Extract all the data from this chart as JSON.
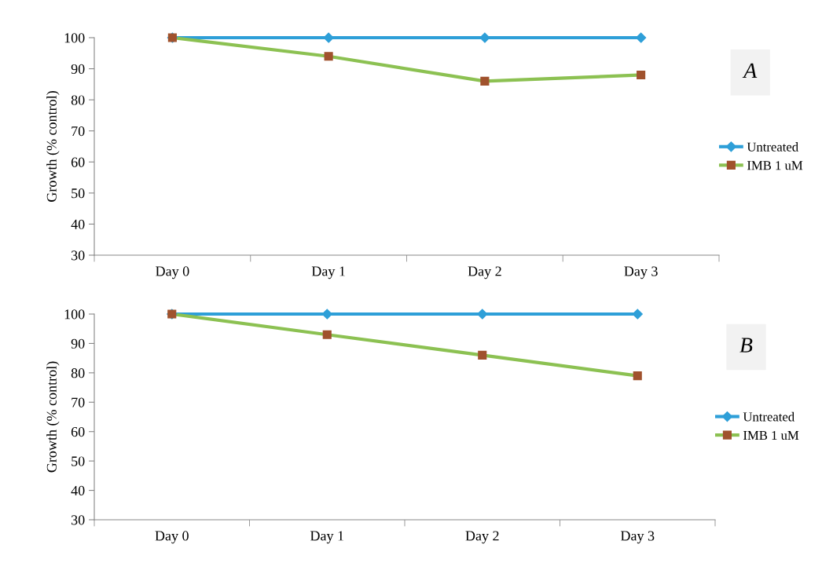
{
  "chart_data": [
    {
      "type": "line",
      "ylabel": "Growth (% control)",
      "categories": [
        "Day 0",
        "Day 1",
        "Day 2",
        "Day 3"
      ],
      "ylim": [
        30,
        100
      ],
      "yticks": [
        30,
        40,
        50,
        60,
        70,
        80,
        90,
        100
      ],
      "grid": false,
      "legend": "right",
      "annotations": [
        "A"
      ],
      "series": [
        {
          "name": "Untreated",
          "color": "#2e9fd8",
          "marker": "diamond",
          "values": [
            100,
            100,
            100,
            100
          ]
        },
        {
          "name": "IMB 1 uM",
          "color": "#8cc152",
          "marker": "square",
          "colors": [
            "#a0522d",
            "#a0522d",
            "#a0522d",
            "#a0522d"
          ],
          "values": [
            100,
            94,
            86,
            88
          ]
        }
      ]
    },
    {
      "type": "line",
      "ylabel": "Growth (% control)",
      "categories": [
        "Day 0",
        "Day 1",
        "Day 2",
        "Day 3"
      ],
      "ylim": [
        30,
        100
      ],
      "yticks": [
        30,
        40,
        50,
        60,
        70,
        80,
        90,
        100
      ],
      "grid": false,
      "legend": "right",
      "annotations": [
        "B"
      ],
      "series": [
        {
          "name": "Untreated",
          "color": "#2e9fd8",
          "marker": "diamond",
          "values": [
            100,
            100,
            100,
            100
          ]
        },
        {
          "name": "IMB 1 uM",
          "color": "#8cc152",
          "marker": "square",
          "colors": [
            "#a0522d",
            "#a0522d",
            "#a0522d",
            "#a0522d"
          ],
          "values": [
            100,
            93,
            86,
            79
          ]
        }
      ]
    }
  ]
}
